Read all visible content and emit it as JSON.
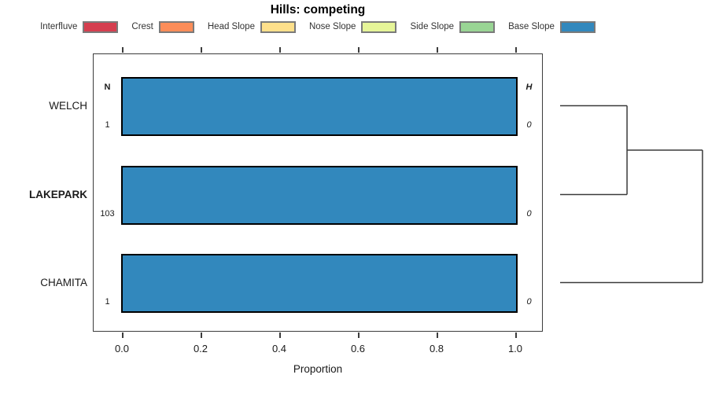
{
  "title": "Hills: competing",
  "legend": {
    "items": [
      {
        "label": "Interfluve",
        "color": "#D53E4F"
      },
      {
        "label": "Crest",
        "color": "#FC8D59"
      },
      {
        "label": "Head Slope",
        "color": "#FEE08B"
      },
      {
        "label": "Nose Slope",
        "color": "#E6F598"
      },
      {
        "label": "Side Slope",
        "color": "#99D594"
      },
      {
        "label": "Base Slope",
        "color": "#3288BD"
      }
    ]
  },
  "chart_data": {
    "type": "bar",
    "orientation": "horizontal",
    "stacked": true,
    "title": "Hills: competing",
    "xlabel": "Proportion",
    "xlim": [
      0,
      1
    ],
    "xticks": [
      0.0,
      0.2,
      0.4,
      0.6,
      0.8,
      1.0
    ],
    "xtick_labels": [
      "0.0",
      "0.2",
      "0.4",
      "0.6",
      "0.8",
      "1.0"
    ],
    "grid": false,
    "categories": [
      "WELCH",
      "LAKEPARK",
      "CHAMITA"
    ],
    "bold_category": "LAKEPARK",
    "series": [
      {
        "name": "Interfluve",
        "color": "#D53E4F",
        "values": [
          0,
          0,
          0
        ]
      },
      {
        "name": "Crest",
        "color": "#FC8D59",
        "values": [
          0,
          0,
          0
        ]
      },
      {
        "name": "Head Slope",
        "color": "#FEE08B",
        "values": [
          0,
          0,
          0
        ]
      },
      {
        "name": "Nose Slope",
        "color": "#E6F598",
        "values": [
          0,
          0,
          0
        ]
      },
      {
        "name": "Side Slope",
        "color": "#99D594",
        "values": [
          0,
          0,
          0
        ]
      },
      {
        "name": "Base Slope",
        "color": "#3288BD",
        "values": [
          1.0,
          1.0,
          1.0
        ]
      }
    ],
    "columns": {
      "n": {
        "header": "N",
        "values": [
          "1",
          "103",
          "1"
        ]
      },
      "h": {
        "header": "H",
        "values": [
          "0",
          "0",
          "0"
        ]
      }
    },
    "dendrogram": {
      "position": "right",
      "leaf_order": [
        "WELCH",
        "LAKEPARK",
        "CHAMITA"
      ],
      "merges": [
        {
          "a": "WELCH",
          "b": "LAKEPARK",
          "height": 0.47
        },
        {
          "a": "WELCH+LAKEPARK",
          "b": "CHAMITA",
          "height": 1.0
        }
      ]
    }
  }
}
